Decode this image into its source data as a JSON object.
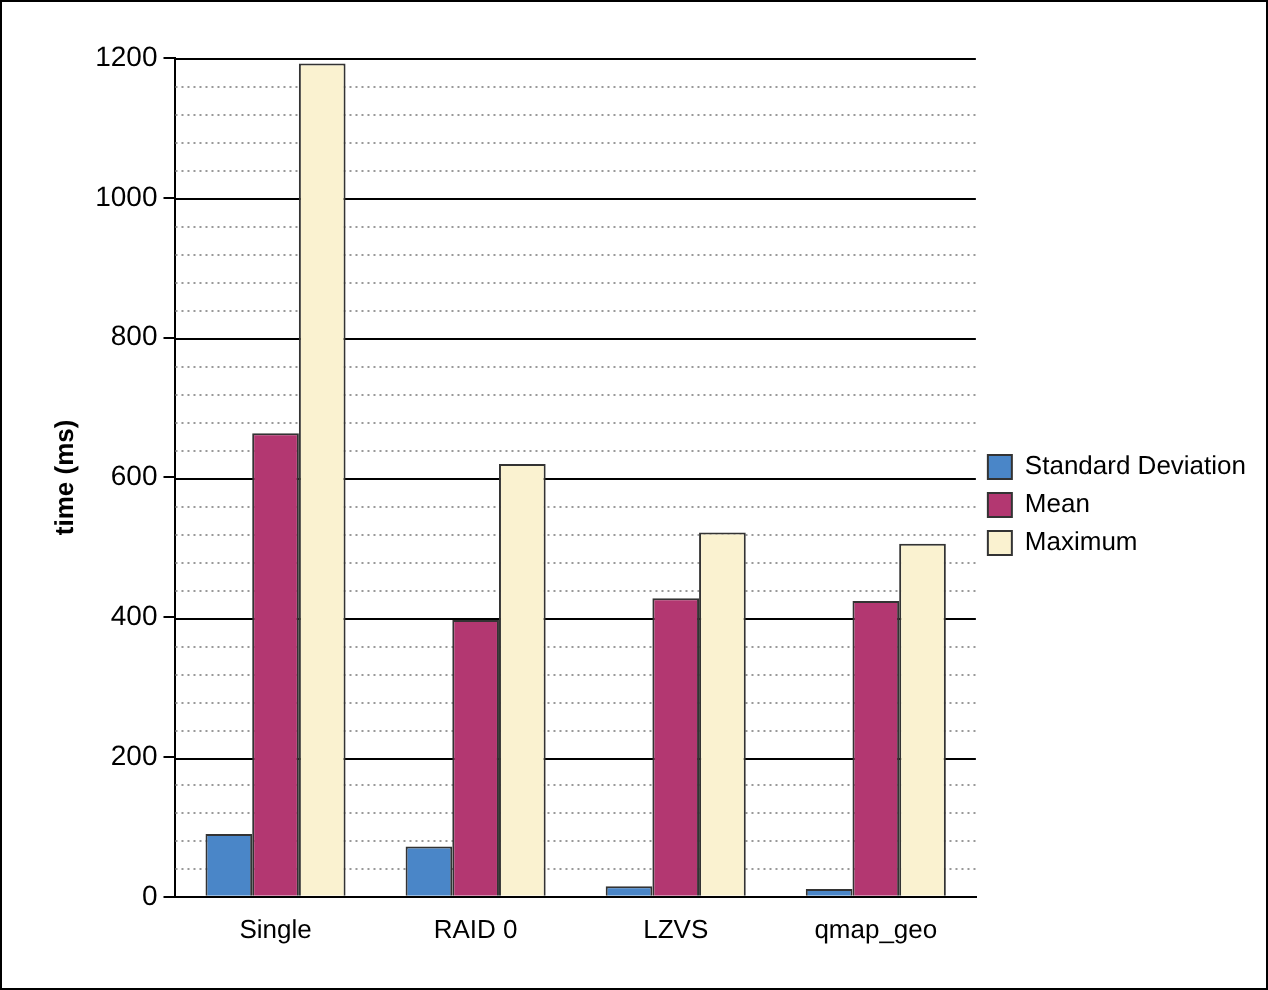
{
  "chart_data": {
    "type": "bar",
    "ylabel": "time (ms)",
    "categories": [
      "Single",
      "RAID 0",
      "LZVS",
      "qmap_geo"
    ],
    "series": [
      {
        "name": "Standard Deviation",
        "color": "#4a86c8",
        "values": [
          90,
          72,
          15,
          11
        ]
      },
      {
        "name": "Mean",
        "color": "#b33771",
        "values": [
          663,
          396,
          427,
          423
        ]
      },
      {
        "name": "Maximum",
        "color": "#faf2d0",
        "values": [
          1192,
          619,
          521,
          505
        ]
      }
    ],
    "ylim": [
      0,
      1200
    ],
    "yticks": [
      0,
      {
        "value": 40,
        "label": null
      },
      {
        "value": 80,
        "label": null
      },
      {
        "value": 120,
        "label": null
      },
      {
        "value": 160,
        "label": null
      },
      200,
      {
        "value": 240,
        "label": null
      },
      {
        "value": 280,
        "label": null
      },
      {
        "value": 320,
        "label": null
      },
      {
        "value": 360,
        "label": null
      },
      400,
      {
        "value": 440,
        "label": null
      },
      {
        "value": 480,
        "label": null
      },
      {
        "value": 520,
        "label": null
      },
      {
        "value": 560,
        "label": null
      },
      600,
      {
        "value": 640,
        "label": null
      },
      {
        "value": 680,
        "label": null
      },
      {
        "value": 720,
        "label": null
      },
      {
        "value": 760,
        "label": null
      },
      800,
      {
        "value": 840,
        "label": null
      },
      {
        "value": 880,
        "label": null
      },
      {
        "value": 920,
        "label": null
      },
      {
        "value": 960,
        "label": null
      },
      1000,
      {
        "value": 1040,
        "label": null
      },
      {
        "value": 1080,
        "label": null
      },
      {
        "value": 1120,
        "label": null
      },
      {
        "value": 1160,
        "label": null
      },
      1200
    ],
    "grid": "y",
    "legend": "right"
  }
}
